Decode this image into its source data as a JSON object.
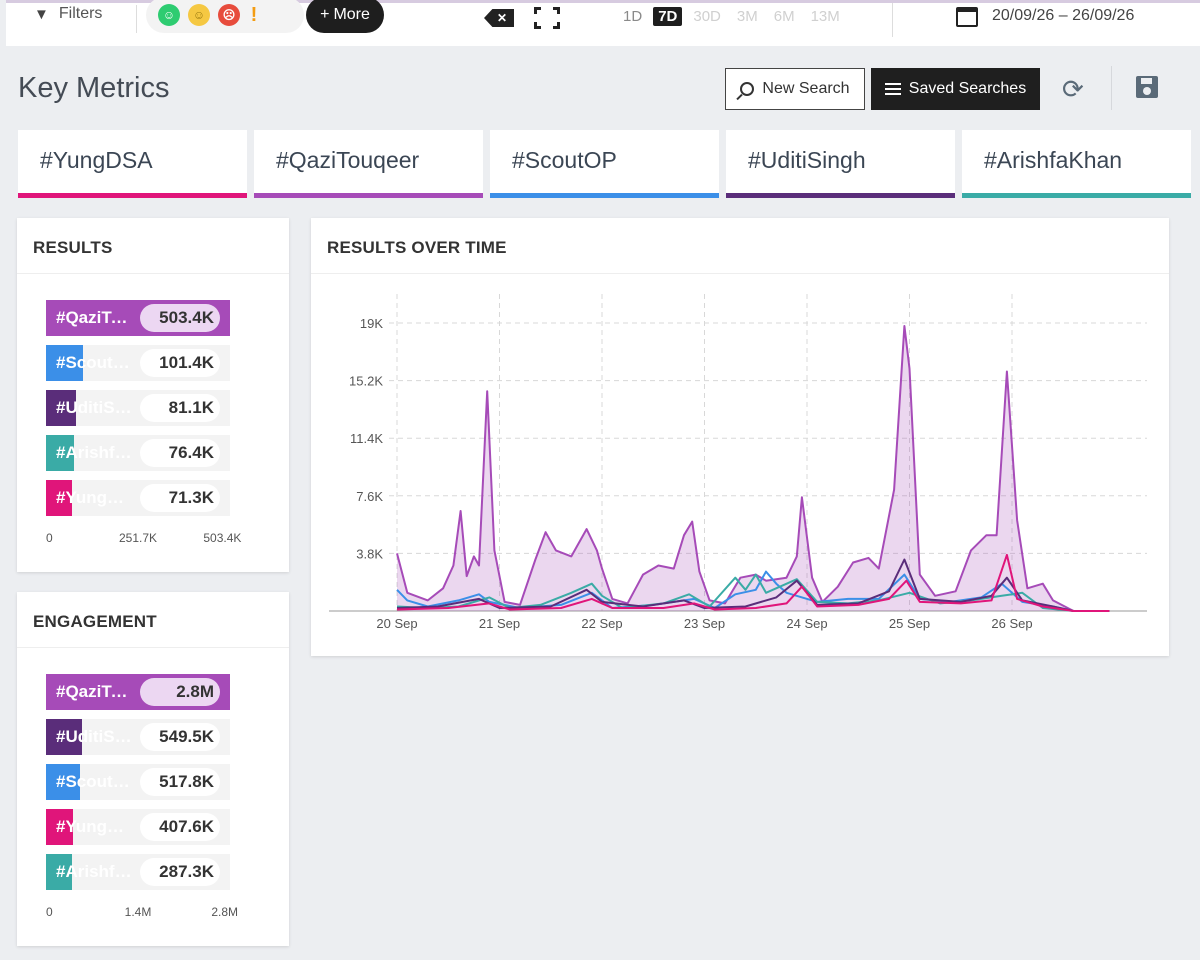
{
  "topbar": {
    "filters_label": "Filters",
    "more_label": "More",
    "sentiment_icons": [
      "happy-face-icon",
      "neutral-face-icon",
      "sad-face-icon",
      "exclamation-icon"
    ],
    "ranges": [
      {
        "label": "1D",
        "state": "dim"
      },
      {
        "label": "7D",
        "state": "active"
      },
      {
        "label": "30D",
        "state": "disabled"
      },
      {
        "label": "3M",
        "state": "disabled"
      },
      {
        "label": "6M",
        "state": "disabled"
      },
      {
        "label": "13M",
        "state": "disabled"
      }
    ],
    "date_range": "20/09/26 – 26/09/26"
  },
  "header": {
    "title": "Key Metrics",
    "new_search_label": "New Search",
    "saved_searches_label": "Saved Searches"
  },
  "tabs": [
    {
      "label": "#YungDSA",
      "color": "#e0157a"
    },
    {
      "label": "#QaziTouqeer",
      "color": "#a64bb8"
    },
    {
      "label": "#ScoutOP",
      "color": "#3b8fe8"
    },
    {
      "label": "#UditiSingh",
      "color": "#5a2d7a"
    },
    {
      "label": "#ArishfaKhan",
      "color": "#3aaba6"
    }
  ],
  "results": {
    "title": "RESULTS",
    "max": 503.4,
    "axis": [
      "0",
      "251.7K",
      "503.4K"
    ],
    "rows": [
      {
        "label": "#QaziTouqeer",
        "value_text": "503.4K",
        "value": 503.4,
        "color": "#a64bb8"
      },
      {
        "label": "#ScoutOP",
        "value_text": "101.4K",
        "value": 101.4,
        "color": "#3b8fe8"
      },
      {
        "label": "#UditiSingh",
        "value_text": "81.1K",
        "value": 81.1,
        "color": "#5a2d7a"
      },
      {
        "label": "#ArishfaKhan",
        "value_text": "76.4K",
        "value": 76.4,
        "color": "#3aaba6"
      },
      {
        "label": "#YungDSA",
        "value_text": "71.3K",
        "value": 71.3,
        "color": "#e0157a"
      }
    ]
  },
  "engagement": {
    "title": "ENGAGEMENT",
    "max": 2800,
    "axis": [
      "0",
      "1.4M",
      "2.8M"
    ],
    "rows": [
      {
        "label": "#QaziTouqeer",
        "value_text": "2.8M",
        "value": 2800,
        "color": "#a64bb8"
      },
      {
        "label": "#UditiSingh",
        "value_text": "549.5K",
        "value": 549.5,
        "color": "#5a2d7a"
      },
      {
        "label": "#ScoutOP",
        "value_text": "517.8K",
        "value": 517.8,
        "color": "#3b8fe8"
      },
      {
        "label": "#YungDSA",
        "value_text": "407.6K",
        "value": 407.6,
        "color": "#e0157a"
      },
      {
        "label": "#ArishfaKhan",
        "value_text": "287.3K",
        "value": 287.3,
        "color": "#3aaba6"
      }
    ]
  },
  "chart_data": {
    "type": "area",
    "title": "RESULTS OVER TIME",
    "x_ticks": [
      "20 Sep",
      "21 Sep",
      "22 Sep",
      "23 Sep",
      "24 Sep",
      "25 Sep",
      "26 Sep"
    ],
    "y_ticks": [
      "3.8K",
      "7.6K",
      "11.4K",
      "15.2K",
      "19K"
    ],
    "ylim": [
      0,
      19000
    ],
    "grid": true,
    "series": [
      {
        "name": "#QaziTouqeer",
        "color": "#a64bb8",
        "fill": true,
        "points": [
          [
            0,
            3800
          ],
          [
            0.1,
            1200
          ],
          [
            0.3,
            700
          ],
          [
            0.45,
            1500
          ],
          [
            0.55,
            3000
          ],
          [
            0.62,
            6600
          ],
          [
            0.68,
            2300
          ],
          [
            0.75,
            3600
          ],
          [
            0.8,
            3000
          ],
          [
            0.88,
            14500
          ],
          [
            0.95,
            4000
          ],
          [
            1.05,
            600
          ],
          [
            1.2,
            400
          ],
          [
            1.35,
            3400
          ],
          [
            1.45,
            5200
          ],
          [
            1.55,
            4000
          ],
          [
            1.7,
            3600
          ],
          [
            1.85,
            5400
          ],
          [
            1.95,
            4000
          ],
          [
            2.0,
            2800
          ],
          [
            2.1,
            800
          ],
          [
            2.25,
            500
          ],
          [
            2.4,
            2400
          ],
          [
            2.55,
            3000
          ],
          [
            2.7,
            2800
          ],
          [
            2.8,
            5000
          ],
          [
            2.88,
            5900
          ],
          [
            2.95,
            2600
          ],
          [
            3.05,
            700
          ],
          [
            3.2,
            500
          ],
          [
            3.35,
            2200
          ],
          [
            3.5,
            2400
          ],
          [
            3.6,
            2000
          ],
          [
            3.8,
            2200
          ],
          [
            3.9,
            3600
          ],
          [
            3.95,
            7500
          ],
          [
            4.05,
            2200
          ],
          [
            4.15,
            600
          ],
          [
            4.3,
            1600
          ],
          [
            4.45,
            3200
          ],
          [
            4.6,
            3500
          ],
          [
            4.7,
            2800
          ],
          [
            4.85,
            8000
          ],
          [
            4.95,
            18800
          ],
          [
            5.0,
            16000
          ],
          [
            5.1,
            2400
          ],
          [
            5.25,
            1000
          ],
          [
            5.45,
            1300
          ],
          [
            5.6,
            4000
          ],
          [
            5.75,
            5000
          ],
          [
            5.85,
            5000
          ],
          [
            5.95,
            15800
          ],
          [
            6.05,
            6000
          ],
          [
            6.15,
            1500
          ],
          [
            6.3,
            1800
          ],
          [
            6.4,
            700
          ],
          [
            6.6,
            0
          ],
          [
            6.95,
            0
          ]
        ]
      },
      {
        "name": "#ScoutOP",
        "color": "#3b8fe8",
        "fill": false,
        "points": [
          [
            0,
            1400
          ],
          [
            0.1,
            700
          ],
          [
            0.3,
            300
          ],
          [
            0.6,
            700
          ],
          [
            0.8,
            1100
          ],
          [
            0.9,
            600
          ],
          [
            1.2,
            200
          ],
          [
            1.6,
            400
          ],
          [
            1.9,
            1200
          ],
          [
            2.1,
            200
          ],
          [
            2.5,
            400
          ],
          [
            2.9,
            800
          ],
          [
            3.1,
            200
          ],
          [
            3.3,
            1100
          ],
          [
            3.5,
            1400
          ],
          [
            3.6,
            2600
          ],
          [
            3.7,
            1800
          ],
          [
            3.8,
            1200
          ],
          [
            4.1,
            600
          ],
          [
            4.4,
            800
          ],
          [
            4.7,
            800
          ],
          [
            4.95,
            2400
          ],
          [
            5.1,
            800
          ],
          [
            5.4,
            600
          ],
          [
            5.7,
            900
          ],
          [
            5.9,
            1800
          ],
          [
            6.1,
            600
          ],
          [
            6.4,
            300
          ],
          [
            6.6,
            0
          ],
          [
            6.95,
            0
          ]
        ]
      },
      {
        "name": "#ArishfaKhan",
        "color": "#3aaba6",
        "fill": false,
        "points": [
          [
            0,
            300
          ],
          [
            0.3,
            200
          ],
          [
            0.6,
            300
          ],
          [
            0.9,
            900
          ],
          [
            1.1,
            200
          ],
          [
            1.4,
            400
          ],
          [
            1.7,
            1200
          ],
          [
            1.9,
            1800
          ],
          [
            2.0,
            1000
          ],
          [
            2.2,
            200
          ],
          [
            2.6,
            500
          ],
          [
            2.85,
            1100
          ],
          [
            3.05,
            300
          ],
          [
            3.3,
            2200
          ],
          [
            3.4,
            1400
          ],
          [
            3.5,
            2400
          ],
          [
            3.6,
            1200
          ],
          [
            3.9,
            2100
          ],
          [
            4.1,
            600
          ],
          [
            4.4,
            500
          ],
          [
            4.7,
            700
          ],
          [
            5.0,
            1200
          ],
          [
            5.3,
            500
          ],
          [
            5.6,
            700
          ],
          [
            5.9,
            1000
          ],
          [
            6.1,
            1200
          ],
          [
            6.3,
            200
          ],
          [
            6.6,
            0
          ],
          [
            6.95,
            0
          ]
        ]
      },
      {
        "name": "#UditiSingh",
        "color": "#5a2d7a",
        "fill": false,
        "points": [
          [
            0,
            200
          ],
          [
            0.4,
            300
          ],
          [
            0.8,
            800
          ],
          [
            1.0,
            200
          ],
          [
            1.5,
            300
          ],
          [
            1.85,
            1400
          ],
          [
            2.0,
            600
          ],
          [
            2.4,
            300
          ],
          [
            2.8,
            700
          ],
          [
            3.0,
            200
          ],
          [
            3.4,
            300
          ],
          [
            3.7,
            900
          ],
          [
            3.9,
            2000
          ],
          [
            4.1,
            400
          ],
          [
            4.5,
            500
          ],
          [
            4.8,
            1300
          ],
          [
            4.95,
            3400
          ],
          [
            5.1,
            800
          ],
          [
            5.5,
            600
          ],
          [
            5.8,
            1000
          ],
          [
            5.95,
            2200
          ],
          [
            6.1,
            700
          ],
          [
            6.4,
            300
          ],
          [
            6.6,
            0
          ],
          [
            6.95,
            0
          ]
        ]
      },
      {
        "name": "#YungDSA",
        "color": "#e0157a",
        "fill": false,
        "points": [
          [
            0,
            100
          ],
          [
            0.5,
            200
          ],
          [
            0.9,
            500
          ],
          [
            1.1,
            100
          ],
          [
            1.6,
            200
          ],
          [
            1.9,
            800
          ],
          [
            2.1,
            200
          ],
          [
            2.6,
            200
          ],
          [
            2.9,
            500
          ],
          [
            3.1,
            100
          ],
          [
            3.5,
            200
          ],
          [
            3.8,
            500
          ],
          [
            3.95,
            1600
          ],
          [
            4.1,
            300
          ],
          [
            4.5,
            400
          ],
          [
            4.8,
            800
          ],
          [
            4.97,
            2000
          ],
          [
            5.1,
            600
          ],
          [
            5.5,
            500
          ],
          [
            5.8,
            700
          ],
          [
            5.95,
            3700
          ],
          [
            6.05,
            800
          ],
          [
            6.3,
            300
          ],
          [
            6.6,
            0
          ],
          [
            6.95,
            0
          ]
        ]
      }
    ]
  }
}
